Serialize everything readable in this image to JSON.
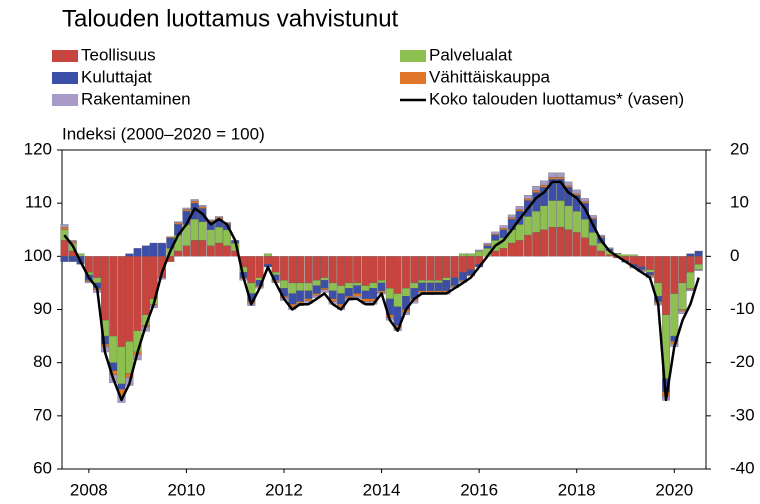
{
  "chart_data": {
    "type": "bar",
    "title": "Talouden luottamus vahvistunut",
    "y_label": "Indeksi (2000–2020 = 100)",
    "x": [
      2008,
      2008.17,
      2008.33,
      2008.5,
      2008.67,
      2008.83,
      2009,
      2009.17,
      2009.33,
      2009.5,
      2009.67,
      2009.83,
      2010,
      2010.17,
      2010.33,
      2010.5,
      2010.67,
      2010.83,
      2011,
      2011.17,
      2011.33,
      2011.5,
      2011.67,
      2011.83,
      2012,
      2012.17,
      2012.33,
      2012.5,
      2012.67,
      2012.83,
      2013,
      2013.17,
      2013.33,
      2013.5,
      2013.67,
      2013.83,
      2014,
      2014.17,
      2014.33,
      2014.5,
      2014.67,
      2014.83,
      2015,
      2015.17,
      2015.33,
      2015.5,
      2015.67,
      2015.83,
      2016,
      2016.17,
      2016.33,
      2016.5,
      2016.67,
      2016.83,
      2017,
      2017.17,
      2017.33,
      2017.5,
      2017.67,
      2017.83,
      2018,
      2018.17,
      2018.33,
      2018.5,
      2018.67,
      2018.83,
      2019,
      2019.17,
      2019.33,
      2019.5,
      2019.67,
      2019.83,
      2020,
      2020.17,
      2020.33,
      2020.5,
      2020.67,
      2020.83,
      2021
    ],
    "series": [
      {
        "name": "Teollisuus",
        "color": "#c8453f",
        "axis": "y2",
        "values": [
          3,
          1,
          0,
          -3,
          -4,
          -12,
          -15,
          -17,
          -16,
          -14,
          -11,
          -8,
          -4,
          -1,
          1,
          2,
          3,
          3,
          2,
          2.5,
          2,
          1,
          -2,
          -5,
          -4,
          -1.5,
          -3,
          -4.5,
          -5,
          -5,
          -5,
          -4.5,
          -4,
          -5,
          -5.5,
          -5,
          -5,
          -5.5,
          -5,
          -4.5,
          -6,
          -7,
          -6,
          -5,
          -4.5,
          -4.5,
          -4.5,
          -4,
          -4,
          -3,
          -2.5,
          -1.5,
          0,
          1,
          1.5,
          2.5,
          3,
          4,
          4.5,
          5,
          5.5,
          5.5,
          5,
          4.5,
          3.5,
          2,
          1,
          0.3,
          -0.3,
          -0.8,
          -1.5,
          -2,
          -2.5,
          -5,
          -11,
          -7,
          -5,
          -3,
          -1.5
        ]
      },
      {
        "name": "Palvelualat",
        "color": "#8dc050",
        "axis": "y2",
        "values": [
          2,
          1.5,
          0.5,
          -0.5,
          -1,
          -3,
          -5,
          -7,
          -6,
          -4,
          -2,
          -1,
          0,
          1.5,
          3,
          4,
          4,
          3.5,
          3,
          3,
          3,
          1.5,
          -1,
          -2,
          -0.5,
          0.5,
          -0.5,
          -1.5,
          -2,
          -1.5,
          -1.5,
          -1,
          -0.5,
          -1.5,
          -1.5,
          -1,
          -0.5,
          -1,
          -1,
          -0.5,
          -2,
          -2.5,
          -1.5,
          -1,
          -0.5,
          -0.5,
          -0.5,
          -0.5,
          0,
          0.5,
          0.5,
          1,
          1.5,
          2,
          2,
          2.5,
          3,
          3.5,
          4,
          4.5,
          5,
          5,
          4.5,
          4,
          3.5,
          2.5,
          1.5,
          0.8,
          0.5,
          0.3,
          0.3,
          0,
          -0.5,
          -2.5,
          -12,
          -8,
          -5,
          -3,
          -1
        ]
      },
      {
        "name": "Kuluttajat",
        "color": "#3c4fa8",
        "axis": "y2",
        "values": [
          -1,
          -1,
          -1.5,
          -1,
          -1,
          -1.5,
          -1.5,
          -1,
          0.5,
          1.5,
          2,
          2.5,
          2.5,
          2,
          2,
          2.5,
          3,
          2.5,
          1.5,
          1.5,
          1,
          0.5,
          -1,
          -1.5,
          -1,
          -0.5,
          -1,
          -1.5,
          -2,
          -2,
          -1.5,
          -1.5,
          -1.5,
          -1.5,
          -2,
          -1.5,
          -1.5,
          -1.5,
          -2,
          -1.5,
          -3,
          -3.5,
          -2.5,
          -2,
          -1.5,
          -1.5,
          -1.5,
          -2,
          -1.5,
          -1.5,
          -1,
          -0.5,
          0.5,
          1,
          1.5,
          2,
          2.5,
          3,
          3.5,
          3.5,
          4,
          4,
          3.5,
          3,
          3,
          2.5,
          1,
          0.3,
          0,
          -0.3,
          -0.5,
          -0.5,
          -0.5,
          -1,
          -2.5,
          -1,
          0,
          0.5,
          1
        ]
      },
      {
        "name": "Vähittäiskauppa",
        "color": "#e0762a",
        "axis": "y2",
        "values": [
          0.5,
          0.3,
          0,
          -0.2,
          -0.3,
          -0.5,
          -0.8,
          -1,
          -0.8,
          -0.5,
          -0.3,
          -0.2,
          0,
          0.2,
          0.3,
          0.3,
          0.4,
          0.3,
          0.2,
          0.3,
          0.2,
          0,
          -0.2,
          -0.3,
          -0.2,
          0,
          -0.2,
          -0.3,
          -0.5,
          -0.3,
          -0.4,
          -0.3,
          -0.3,
          -0.5,
          -0.5,
          -0.3,
          -0.5,
          -0.5,
          -0.5,
          -0.3,
          -0.5,
          -0.5,
          -0.5,
          -0.3,
          -0.3,
          -0.3,
          -0.3,
          -0.3,
          -0.2,
          -0.2,
          -0.2,
          0,
          0.2,
          0.2,
          0.3,
          0.3,
          0.3,
          0.3,
          0.4,
          0.4,
          0.4,
          0.4,
          0.3,
          0.3,
          0.3,
          0.2,
          0.2,
          0,
          0,
          0,
          0,
          -0.1,
          -0.2,
          -0.3,
          -0.8,
          -0.5,
          -0.3,
          -0.2,
          0
        ]
      },
      {
        "name": "Rakentaminen",
        "color": "#a99bc8",
        "axis": "y2",
        "values": [
          0.5,
          0.2,
          0,
          -0.3,
          -0.5,
          -1,
          -1.5,
          -1.5,
          -1.5,
          -1,
          -0.8,
          -0.5,
          -0.3,
          0,
          0.2,
          0.3,
          0.3,
          0.3,
          0.2,
          0.2,
          0.2,
          0,
          -0.3,
          -0.5,
          -0.3,
          0,
          -0.3,
          -0.5,
          -0.5,
          -0.5,
          -0.5,
          -0.5,
          -0.5,
          -0.5,
          -0.5,
          -0.5,
          -0.5,
          -0.5,
          -0.5,
          -0.3,
          -0.5,
          -0.5,
          -0.5,
          -0.5,
          -0.4,
          -0.4,
          -0.3,
          -0.3,
          -0.2,
          -0.2,
          0,
          0.2,
          0.3,
          0.4,
          0.5,
          0.5,
          0.6,
          0.7,
          0.8,
          0.8,
          0.8,
          0.8,
          0.7,
          0.7,
          0.6,
          0.5,
          0.3,
          0.2,
          0.1,
          0,
          -0.2,
          -0.3,
          -0.3,
          -0.4,
          -0.8,
          -0.5,
          -0.5,
          -0.3,
          -0.2
        ]
      },
      {
        "name": "Koko talouden luottamus* (vasen)",
        "color": "#000000",
        "type": "line",
        "axis": "y",
        "values": [
          104,
          102,
          99,
          96,
          94,
          82,
          77,
          73,
          76,
          82,
          87,
          91,
          97,
          101,
          104,
          106,
          109,
          108,
          106,
          107,
          106,
          103,
          96,
          91,
          94,
          98,
          95,
          92,
          90,
          91,
          91,
          92,
          93,
          91,
          90,
          92,
          92,
          91,
          91,
          93,
          88,
          86,
          90,
          92,
          93,
          93,
          93,
          93,
          94,
          95,
          96,
          98,
          100,
          102,
          103,
          105,
          107,
          109,
          111,
          112,
          114,
          114,
          112,
          111,
          109,
          106,
          103,
          101,
          100,
          99,
          98,
          97,
          96,
          91,
          73,
          83,
          88,
          91,
          96
        ]
      }
    ],
    "xlim": [
      2007.95,
      2021.15
    ],
    "xticks": [
      {
        "value": 2008.5,
        "label": "2008"
      },
      {
        "value": 2010.5,
        "label": "2010"
      },
      {
        "value": 2012.5,
        "label": "2012"
      },
      {
        "value": 2014.5,
        "label": "2014"
      },
      {
        "value": 2016.5,
        "label": "2016"
      },
      {
        "value": 2018.5,
        "label": "2018"
      },
      {
        "value": 2020.5,
        "label": "2020"
      }
    ],
    "ylim": [
      60,
      120
    ],
    "yticks": [
      60,
      70,
      80,
      90,
      100,
      110,
      120
    ],
    "y2lim": [
      -40,
      20
    ],
    "y2ticks": [
      -40,
      -30,
      -20,
      -10,
      0,
      10,
      20
    ],
    "stacked": true,
    "grid": false
  }
}
